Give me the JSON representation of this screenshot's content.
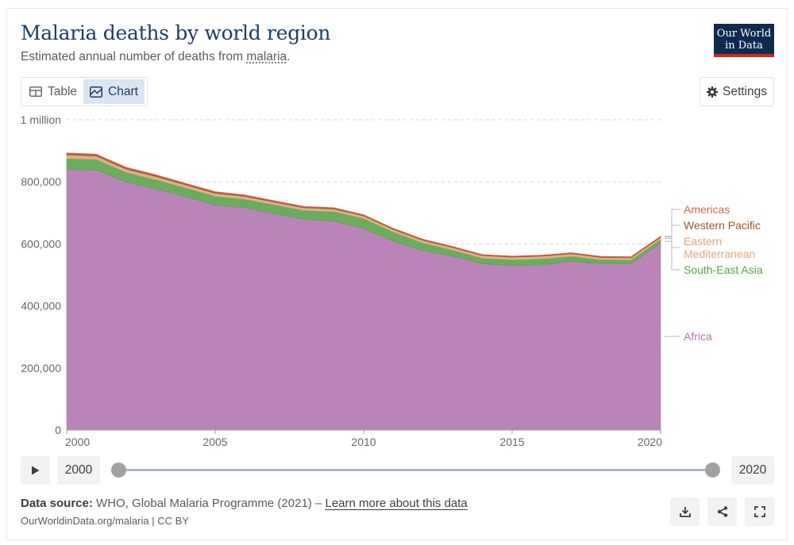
{
  "header": {
    "title": "Malaria deaths by world region",
    "subtitle_prefix": "Estimated annual number of deaths from ",
    "subtitle_link": "malaria",
    "subtitle_suffix": "."
  },
  "logo": {
    "line1": "Our World",
    "line2": "in Data"
  },
  "tabs": [
    {
      "label": "Table",
      "icon": "table-icon"
    },
    {
      "label": "Chart",
      "icon": "chart-icon"
    }
  ],
  "settings": {
    "label": "Settings",
    "icon": "gear-icon"
  },
  "timeline": {
    "start_label": "2000",
    "end_label": "2020",
    "play_icon": "play-icon"
  },
  "footer": {
    "source_label": "Data source:",
    "source_text": " WHO, Global Malaria Programme (2021) – ",
    "learn_more": "Learn more about this data",
    "url": "OurWorldinData.org/malaria | CC BY",
    "icons": [
      "download-icon",
      "share-icon",
      "fullscreen-icon"
    ]
  },
  "colors": {
    "africa": "#b276b2",
    "south_east_asia": "#58a34a",
    "eastern_mediterranean": "#e0a67a",
    "western_pacific": "#99582e",
    "americas": "#d96356",
    "title": "#1d3d63",
    "logo_bg": "#0f2a4f",
    "logo_accent": "#ce261e"
  },
  "chart_data": {
    "type": "area",
    "stacked": true,
    "title": "Malaria deaths by world region",
    "x": [
      2000,
      2001,
      2002,
      2003,
      2004,
      2005,
      2006,
      2007,
      2008,
      2009,
      2010,
      2011,
      2012,
      2013,
      2014,
      2015,
      2016,
      2017,
      2018,
      2019,
      2020
    ],
    "series": [
      {
        "name": "Africa",
        "color": "#b276b2",
        "values": [
          840000,
          838000,
          800000,
          777000,
          752000,
          725000,
          716000,
          697000,
          679000,
          673000,
          650000,
          608000,
          578000,
          560000,
          536000,
          530000,
          532000,
          544000,
          535000,
          536000,
          602000
        ]
      },
      {
        "name": "South-East Asia",
        "color": "#58a34a",
        "values": [
          35000,
          34000,
          31000,
          30000,
          29000,
          29000,
          28000,
          29000,
          29000,
          31000,
          32000,
          30000,
          25000,
          20000,
          18000,
          19000,
          20000,
          16000,
          14000,
          12000,
          12000
        ]
      },
      {
        "name": "Eastern Mediterranean",
        "color": "#e0a67a",
        "values": [
          12000,
          11000,
          10000,
          10000,
          9000,
          9000,
          9000,
          8000,
          8000,
          8000,
          8000,
          8000,
          8000,
          8000,
          8000,
          8000,
          8000,
          8000,
          7000,
          7000,
          7000
        ]
      },
      {
        "name": "Western Pacific",
        "color": "#99582e",
        "values": [
          5000,
          5000,
          5000,
          5000,
          4500,
          4500,
          4000,
          4000,
          4000,
          4000,
          3500,
          3500,
          3500,
          3000,
          3000,
          3000,
          3000,
          3000,
          3000,
          3000,
          3000
        ]
      },
      {
        "name": "Americas",
        "color": "#d96356",
        "values": [
          1300,
          1200,
          1100,
          1000,
          1000,
          900,
          900,
          800,
          800,
          700,
          700,
          600,
          600,
          600,
          500,
          500,
          600,
          600,
          600,
          500,
          500
        ]
      }
    ],
    "y_ticks": [
      "0",
      "200,000",
      "400,000",
      "600,000",
      "800,000",
      "1 million"
    ],
    "x_ticks": [
      "2000",
      "2005",
      "2010",
      "2015",
      "2020"
    ],
    "ylim": [
      0,
      1000000
    ],
    "xlim": [
      2000,
      2020
    ],
    "legend_labels": [
      {
        "text": "Americas",
        "color": "#d96356"
      },
      {
        "text": "Western Pacific",
        "color": "#99582e"
      },
      {
        "text": "Eastern",
        "color": "#e0a67a"
      },
      {
        "text": "Mediterranean",
        "color": "#e0a67a"
      },
      {
        "text": "South-East Asia",
        "color": "#58a34a"
      },
      {
        "text": "Africa",
        "color": "#b276b2"
      }
    ],
    "legend_position": "right"
  }
}
